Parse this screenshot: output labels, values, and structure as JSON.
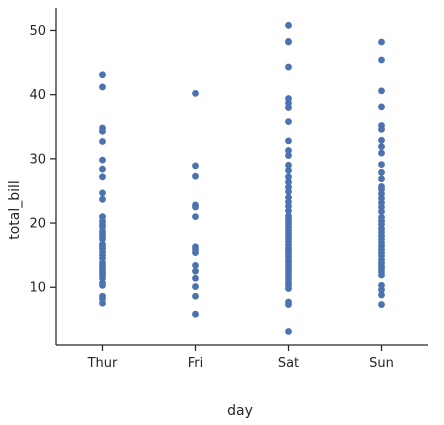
{
  "chart_data": {
    "type": "scatter",
    "title": "",
    "xlabel": "day",
    "ylabel": "total_bill",
    "categories": [
      "Thur",
      "Fri",
      "Sat",
      "Sun"
    ],
    "ylim": [
      1,
      53.5
    ],
    "yticks": [
      10,
      20,
      30,
      40,
      50
    ],
    "grid": false,
    "legend": "none",
    "point_color": "#4c72b0",
    "series": [
      {
        "category": "Thur",
        "values": [
          43.1,
          41.2,
          34.8,
          34.3,
          32.7,
          29.8,
          28.4,
          27.2,
          24.7,
          23.7,
          21.0,
          20.3,
          19.8,
          19.4,
          18.7,
          18.3,
          17.9,
          17.5,
          16.7,
          16.4,
          16.0,
          15.5,
          15.0,
          14.5,
          13.8,
          13.4,
          13.0,
          12.7,
          12.3,
          11.9,
          11.4,
          10.7,
          10.3,
          8.6,
          8.2,
          7.5
        ]
      },
      {
        "category": "Fri",
        "values": [
          40.2,
          28.9,
          27.3,
          22.8,
          22.5,
          21.0,
          16.3,
          15.9,
          15.4,
          13.4,
          12.5,
          11.4,
          10.1,
          8.6,
          5.8
        ]
      },
      {
        "category": "Sat",
        "values": [
          50.8,
          48.3,
          48.2,
          44.3,
          39.4,
          38.7,
          38.0,
          35.8,
          32.8,
          31.3,
          30.5,
          29.0,
          28.2,
          27.2,
          26.4,
          25.6,
          24.9,
          24.0,
          23.3,
          22.6,
          21.9,
          21.1,
          20.7,
          20.3,
          19.8,
          19.4,
          18.9,
          18.4,
          18.0,
          17.6,
          17.1,
          16.6,
          16.1,
          15.7,
          15.3,
          14.8,
          14.3,
          13.9,
          13.4,
          13.0,
          12.6,
          12.1,
          11.6,
          11.2,
          10.7,
          10.3,
          9.8,
          7.7,
          7.3,
          3.1
        ]
      },
      {
        "category": "Sun",
        "values": [
          48.2,
          45.4,
          40.6,
          38.1,
          35.2,
          34.6,
          32.9,
          31.9,
          30.9,
          29.1,
          27.9,
          26.9,
          25.7,
          25.3,
          24.6,
          23.9,
          23.2,
          22.5,
          21.8,
          20.9,
          20.3,
          19.8,
          19.1,
          18.6,
          18.0,
          17.5,
          16.9,
          16.4,
          15.9,
          15.4,
          14.9,
          14.3,
          13.8,
          13.3,
          12.9,
          12.4,
          11.9,
          10.3,
          9.6,
          8.8,
          7.3
        ]
      }
    ]
  }
}
